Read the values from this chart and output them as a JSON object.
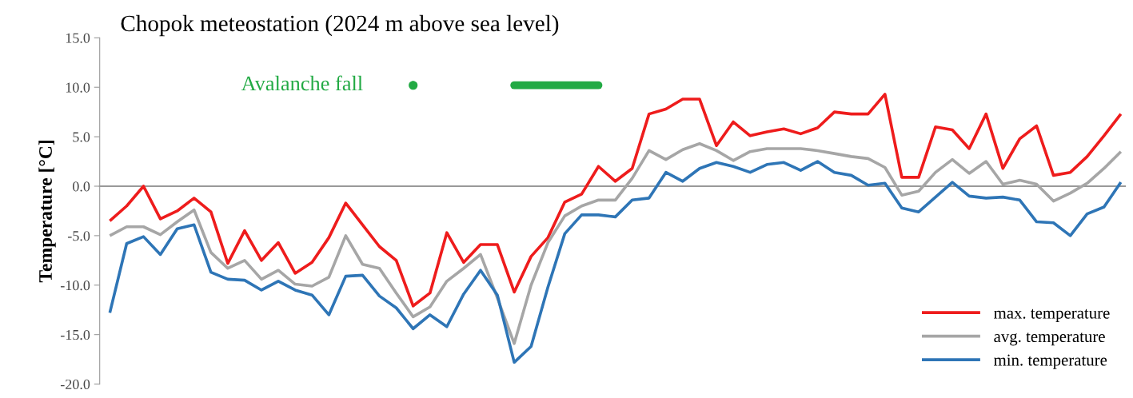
{
  "chart_data": {
    "type": "line",
    "title": "Chopok meteostation (2024 m above sea level)",
    "ylabel": "Temperature [°C]",
    "categories": [
      null,
      null,
      null,
      null,
      null,
      null,
      null,
      null,
      null,
      null,
      null,
      null,
      null,
      null,
      null,
      null,
      null,
      null,
      null,
      null,
      null,
      null,
      null,
      null,
      null,
      null,
      null,
      null,
      null,
      null,
      null,
      null,
      null,
      null,
      null,
      null,
      null,
      null,
      null,
      null,
      null,
      null,
      null,
      null,
      null,
      null,
      null,
      null,
      null,
      null,
      null,
      null,
      null,
      null,
      null,
      null,
      null,
      null,
      null,
      null,
      null
    ],
    "ylim": [
      -20,
      15
    ],
    "yticks": [
      {
        "value": -20,
        "label": "-20.0"
      },
      {
        "value": -15,
        "label": "-15.0"
      },
      {
        "value": -10,
        "label": "-10.0"
      },
      {
        "value": -5,
        "label": "-5.0"
      },
      {
        "value": 0,
        "label": "0.0"
      },
      {
        "value": 5,
        "label": "5.0"
      },
      {
        "value": 10,
        "label": "10.0"
      },
      {
        "value": 15,
        "label": "15.0"
      }
    ],
    "tick_labels": "y",
    "grid": false,
    "legend": "bottom right",
    "marker": "none",
    "line_style": "solid",
    "series": [
      {
        "name": "max. temperature",
        "color": "#ee1c1c",
        "values": [
          -3.5,
          -2.0,
          0.0,
          -3.3,
          -2.5,
          -1.2,
          -2.6,
          -7.8,
          -4.5,
          -7.5,
          -5.7,
          -8.8,
          -7.7,
          -5.2,
          -1.7,
          -3.9,
          -6.1,
          -7.5,
          -12.1,
          -10.8,
          -4.7,
          -7.7,
          -5.9,
          -5.9,
          -10.7,
          -7.1,
          -5.2,
          -1.6,
          -0.8,
          2.0,
          0.5,
          1.8,
          7.3,
          7.8,
          8.8,
          8.8,
          4.1,
          6.5,
          5.1,
          5.5,
          5.8,
          5.3,
          5.9,
          7.5,
          7.3,
          7.3,
          9.3,
          0.9,
          0.9,
          6.0,
          5.7,
          3.8,
          7.3,
          1.8,
          4.8,
          6.1,
          1.1,
          1.4,
          3.0,
          5.1,
          7.3
        ]
      },
      {
        "name": "avg. temperature",
        "color": "#a6a6a6",
        "values": [
          -5.0,
          -4.1,
          -4.1,
          -4.9,
          -3.6,
          -2.4,
          -6.7,
          -8.3,
          -7.5,
          -9.4,
          -8.5,
          -9.9,
          -10.1,
          -9.2,
          -5.0,
          -7.9,
          -8.3,
          -10.8,
          -13.2,
          -12.2,
          -9.6,
          -8.3,
          -6.9,
          -11.3,
          -15.9,
          -10.0,
          -5.7,
          -3.0,
          -2.0,
          -1.4,
          -1.4,
          0.8,
          3.6,
          2.7,
          3.7,
          4.3,
          3.6,
          2.6,
          3.5,
          3.8,
          3.8,
          3.8,
          3.6,
          3.3,
          3.0,
          2.8,
          1.9,
          -0.9,
          -0.5,
          1.4,
          2.7,
          1.3,
          2.5,
          0.2,
          0.6,
          0.2,
          -1.5,
          -0.7,
          0.3,
          1.8,
          3.5
        ]
      },
      {
        "name": "min. temperature",
        "color": "#2e75b6",
        "values": [
          -12.8,
          -5.8,
          -5.1,
          -6.9,
          -4.3,
          -3.9,
          -8.7,
          -9.4,
          -9.5,
          -10.5,
          -9.6,
          -10.5,
          -11.0,
          -13.0,
          -9.1,
          -9.0,
          -11.1,
          -12.3,
          -14.4,
          -13.0,
          -14.2,
          -10.9,
          -8.5,
          -11.0,
          -17.8,
          -16.2,
          -10.2,
          -4.8,
          -2.9,
          -2.9,
          -3.1,
          -1.4,
          -1.2,
          1.4,
          0.5,
          1.8,
          2.4,
          2.0,
          1.4,
          2.2,
          2.4,
          1.6,
          2.5,
          1.4,
          1.1,
          0.1,
          0.3,
          -2.2,
          -2.6,
          -1.1,
          0.4,
          -1.0,
          -1.2,
          -1.1,
          -1.4,
          -3.6,
          -3.7,
          -5.0,
          -2.8,
          -2.1,
          0.4
        ]
      },
      {
        "name": "Avalanche fall",
        "type": "line",
        "color": "#22aa44",
        "values": [
          null,
          null,
          null,
          null,
          null,
          null,
          null,
          null,
          null,
          null,
          null,
          null,
          null,
          null,
          null,
          null,
          null,
          null,
          10.2,
          null,
          null,
          null,
          null,
          null,
          10.2,
          10.2,
          10.2,
          10.2,
          10.2,
          10.2,
          null,
          null,
          null,
          null,
          null,
          null,
          null,
          null,
          null,
          null,
          null,
          null,
          null,
          null,
          null,
          null,
          null,
          null,
          null,
          null,
          null,
          null,
          null,
          null,
          null,
          null,
          null,
          null,
          null,
          null,
          null
        ]
      }
    ]
  }
}
